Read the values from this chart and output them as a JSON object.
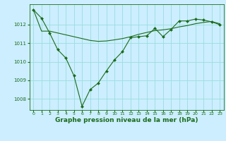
{
  "background_color": "#cceeff",
  "grid_color": "#99dddd",
  "line_color": "#1a6b1a",
  "marker_color": "#1a6b1a",
  "xlabel": "Graphe pression niveau de la mer (hPa)",
  "xlabel_fontsize": 6.5,
  "ylim": [
    1007.4,
    1013.1
  ],
  "xlim": [
    -0.5,
    23.5
  ],
  "yticks": [
    1008,
    1009,
    1010,
    1011,
    1012
  ],
  "xticks": [
    0,
    1,
    2,
    3,
    4,
    5,
    6,
    7,
    8,
    9,
    10,
    11,
    12,
    13,
    14,
    15,
    16,
    17,
    18,
    19,
    20,
    21,
    22,
    23
  ],
  "line1_x": [
    0,
    1,
    2,
    3,
    4,
    5,
    6,
    7,
    8,
    9,
    10,
    11,
    12,
    13,
    14,
    15,
    16,
    17,
    18,
    19,
    20,
    21,
    22,
    23
  ],
  "line1_y": [
    1012.8,
    1012.35,
    1011.55,
    1010.65,
    1010.2,
    1009.25,
    1007.6,
    1008.5,
    1008.85,
    1009.5,
    1010.1,
    1010.55,
    1011.3,
    1011.35,
    1011.4,
    1011.8,
    1011.35,
    1011.75,
    1012.2,
    1012.2,
    1012.3,
    1012.25,
    1012.15,
    1012.0
  ],
  "line2_x": [
    0,
    1,
    2,
    3,
    4,
    5,
    6,
    7,
    8,
    9,
    10,
    11,
    12,
    13,
    14,
    15,
    16,
    17,
    18,
    19,
    20,
    21,
    22,
    23
  ],
  "line2_y": [
    1012.8,
    1011.65,
    1011.65,
    1011.55,
    1011.45,
    1011.35,
    1011.25,
    1011.15,
    1011.1,
    1011.12,
    1011.18,
    1011.25,
    1011.35,
    1011.48,
    1011.58,
    1011.68,
    1011.72,
    1011.78,
    1011.88,
    1011.95,
    1012.05,
    1012.12,
    1012.17,
    1012.05
  ]
}
